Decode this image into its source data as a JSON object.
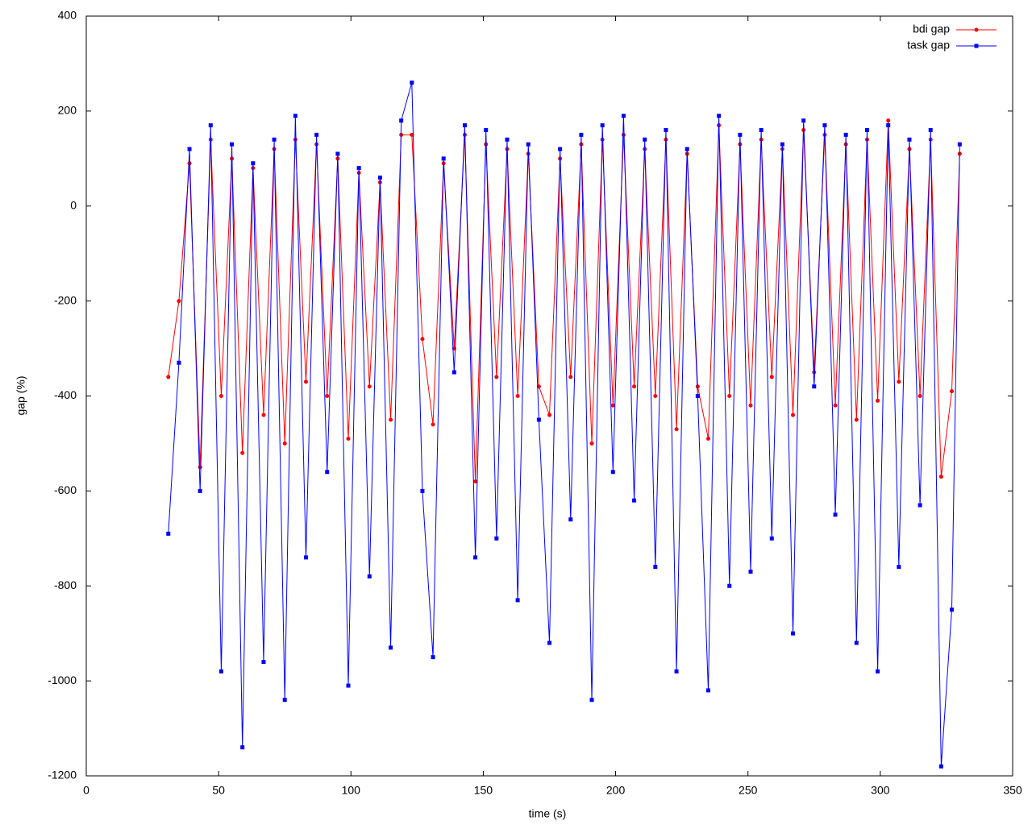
{
  "chart_data": {
    "type": "line",
    "xlabel": "time (s)",
    "ylabel": "gap (%)",
    "x": [
      31,
      35,
      39,
      43,
      47,
      51,
      55,
      59,
      63,
      67,
      71,
      75,
      79,
      83,
      87,
      91,
      95,
      99,
      103,
      107,
      111,
      115,
      119,
      123,
      127,
      131,
      135,
      139,
      143,
      147,
      151,
      155,
      159,
      163,
      167,
      171,
      175,
      179,
      183,
      187,
      191,
      195,
      199,
      203,
      207,
      211,
      215,
      219,
      223,
      227,
      231,
      235,
      239,
      243,
      247,
      251,
      255,
      259,
      263,
      267,
      271,
      275,
      279,
      283,
      287,
      291,
      295,
      299,
      303,
      307,
      311,
      315,
      319,
      323,
      327,
      330
    ],
    "series": [
      {
        "name": "bdi gap",
        "color": "#ff0000",
        "marker": "circle",
        "values": [
          -360,
          -200,
          90,
          -550,
          140,
          -400,
          100,
          -520,
          80,
          -440,
          120,
          -500,
          140,
          -370,
          130,
          -400,
          100,
          -490,
          70,
          -380,
          50,
          -450,
          150,
          150,
          -280,
          -460,
          90,
          -300,
          150,
          -580,
          130,
          -360,
          120,
          -400,
          110,
          -380,
          -440,
          100,
          -360,
          130,
          -500,
          140,
          -420,
          150,
          -380,
          120,
          -400,
          140,
          -470,
          110,
          -380,
          -490,
          170,
          -400,
          130,
          -420,
          140,
          -360,
          120,
          -440,
          160,
          -350,
          150,
          -420,
          130,
          -450,
          140,
          -410,
          180,
          -370,
          120,
          -400,
          140,
          -570,
          -390,
          110
        ]
      },
      {
        "name": "task gap",
        "color": "#0000ff",
        "marker": "square",
        "values": [
          -690,
          -330,
          120,
          -600,
          170,
          -980,
          130,
          -1140,
          90,
          -960,
          140,
          -1040,
          190,
          -740,
          150,
          -560,
          110,
          -1010,
          80,
          -780,
          60,
          -930,
          180,
          260,
          -600,
          -950,
          100,
          -350,
          170,
          -740,
          160,
          -700,
          140,
          -830,
          130,
          -450,
          -920,
          120,
          -660,
          150,
          -1040,
          170,
          -560,
          190,
          -620,
          140,
          -760,
          160,
          -980,
          120,
          -400,
          -1020,
          190,
          -800,
          150,
          -770,
          160,
          -700,
          130,
          -900,
          180,
          -380,
          170,
          -650,
          150,
          -920,
          160,
          -980,
          170,
          -760,
          140,
          -630,
          160,
          -1180,
          -850,
          130
        ]
      }
    ],
    "xlim": [
      0,
      350
    ],
    "xticks": [
      0,
      50,
      100,
      150,
      200,
      250,
      300,
      350
    ],
    "ylim": [
      -1200,
      400
    ],
    "yticks": [
      -1200,
      -1000,
      -800,
      -600,
      -400,
      -200,
      0,
      200,
      400
    ],
    "legend": "top-right",
    "grid": false
  }
}
